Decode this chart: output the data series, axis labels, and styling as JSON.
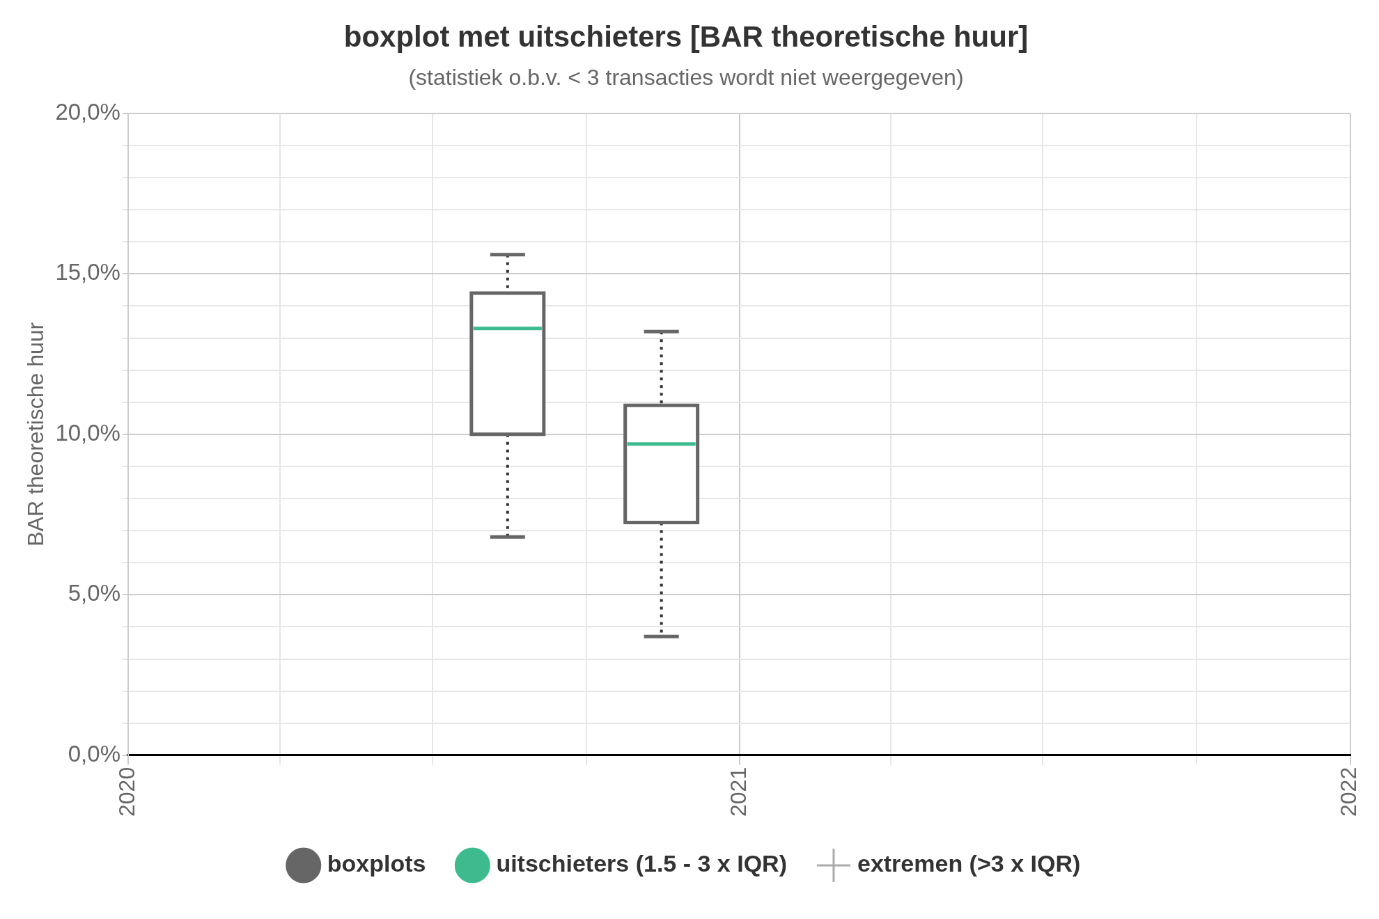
{
  "chart_data": {
    "type": "box",
    "title": "boxplot met uitschieters [BAR theoretische huur]",
    "subtitle": "(statistiek o.b.v. < 3 transacties wordt niet weergegeven)",
    "ylabel": "BAR theoretische huur",
    "xlim": [
      "2020",
      "2022"
    ],
    "xticks": [
      {
        "value": "2020",
        "label": "2020"
      },
      {
        "value": "2020-04",
        "label": null
      },
      {
        "value": "2020-07",
        "label": null
      },
      {
        "value": "2020-10",
        "label": null
      },
      {
        "value": "2021",
        "label": "2021"
      },
      {
        "value": "2021-04",
        "label": null
      },
      {
        "value": "2021-07",
        "label": null
      },
      {
        "value": "2021-10",
        "label": null
      },
      {
        "value": "2022",
        "label": "2022"
      }
    ],
    "ylim": [
      0,
      20
    ],
    "yticks": [
      {
        "value": 0,
        "label": "0,0%"
      },
      {
        "value": 1,
        "label": null
      },
      {
        "value": 2,
        "label": null
      },
      {
        "value": 3,
        "label": null
      },
      {
        "value": 4,
        "label": null
      },
      {
        "value": 5,
        "label": "5,0%"
      },
      {
        "value": 6,
        "label": null
      },
      {
        "value": 7,
        "label": null
      },
      {
        "value": 8,
        "label": null
      },
      {
        "value": 9,
        "label": null
      },
      {
        "value": 10,
        "label": "10,0%"
      },
      {
        "value": 11,
        "label": null
      },
      {
        "value": 12,
        "label": null
      },
      {
        "value": 13,
        "label": null
      },
      {
        "value": 14,
        "label": null
      },
      {
        "value": 15,
        "label": "15,0%"
      },
      {
        "value": 16,
        "label": null
      },
      {
        "value": 17,
        "label": null
      },
      {
        "value": 18,
        "label": null
      },
      {
        "value": 19,
        "label": null
      },
      {
        "value": 20,
        "label": "20,0%"
      }
    ],
    "grid": true,
    "legend": "bottom",
    "series": [
      {
        "name": "boxplots",
        "color": "#666666",
        "x": [
          "2020-08-15",
          "2020-11-15"
        ],
        "boxes": [
          {
            "low": 6.8,
            "q1": 10.0,
            "median": 13.3,
            "q3": 14.4,
            "high": 15.6
          },
          {
            "low": 3.7,
            "q1": 7.25,
            "median": 9.7,
            "q3": 10.9,
            "high": 13.2
          }
        ]
      },
      {
        "name": "uitschieters (1.5 - 3 x IQR)",
        "type": "scatter",
        "color": "#3dbb8e",
        "marker": "circle"
      },
      {
        "name": "extremen (>3 x IQR)",
        "type": "scatter",
        "color": "#aaaaaa",
        "marker": "cross"
      }
    ]
  }
}
